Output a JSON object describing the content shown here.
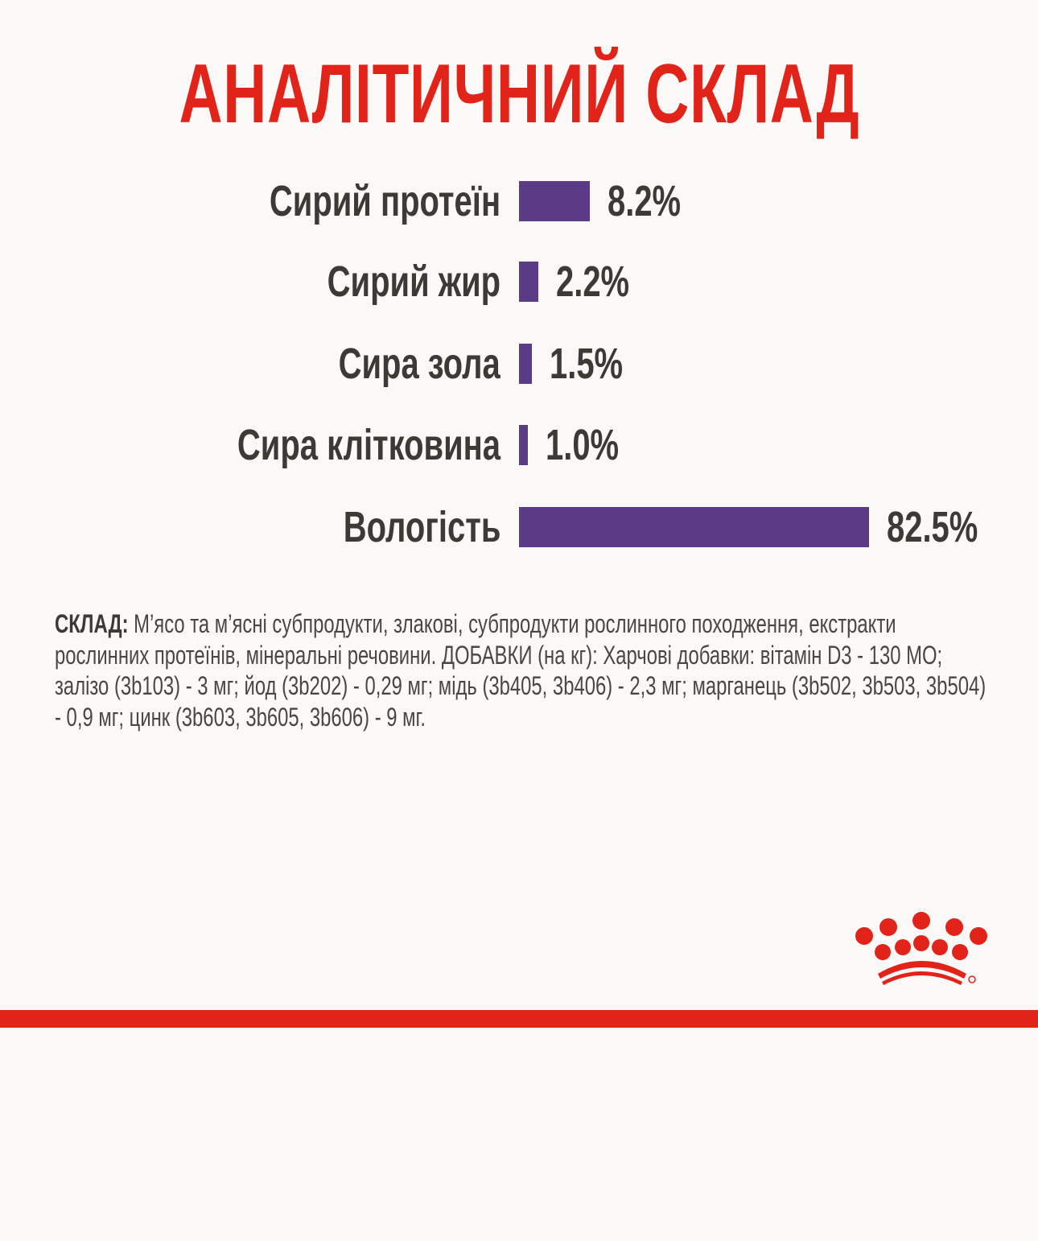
{
  "chart_data": {
    "type": "bar",
    "orientation": "horizontal",
    "title": "АНАЛІТИЧНИЙ СКЛАД",
    "categories": [
      "Сирий протеїн",
      "Сирий жир",
      "Сира зола",
      "Сира клітковина",
      "Вологість"
    ],
    "values": [
      8.2,
      2.2,
      1.5,
      1.0,
      82.5
    ],
    "value_labels": [
      "8.2%",
      "2.2%",
      "1.5%",
      "1.0%",
      "82.5%"
    ],
    "unit": "%",
    "bar_color": "#5b3b86",
    "grid": false
  },
  "composition": {
    "heading": "СКЛАД:",
    "text": " М’ясо та м’ясні субпродукти, злакові, субпродукти рослинного походження, екстракти рослинних протеїнів, мінеральні речовини. ДОБАВКИ (на кг): Харчові добавки: вітамін D3 - 130 МО; залізо (3b103) - 3 мг; йод (3b202) - 0,29 мг; мідь (3b405, 3b406) - 2,3 мг; марганець (3b502, 3b503, 3b504) - 0,9 мг; цинк (3b603, 3b605, 3b606) - 9 мг."
  },
  "brand": {
    "logo": "royal-canin-crown-icon",
    "color": "#e2231a"
  }
}
